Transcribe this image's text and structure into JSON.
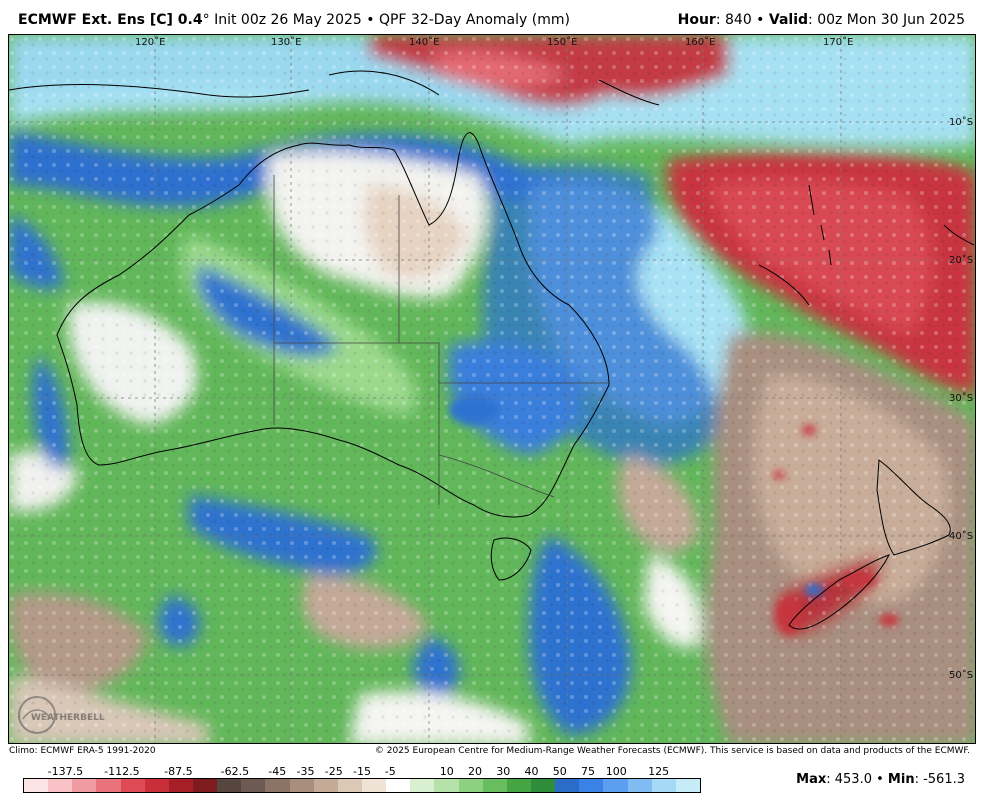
{
  "header": {
    "model": "ECMWF Ext. Ens [C] 0.4",
    "degree": "°",
    "run": " Init 00z 26 May 2025 • QPF 32-Day Anomaly (mm)",
    "hour_label": "Hour",
    "hour_value": ": 840 • ",
    "valid_label": "Valid",
    "valid_value": ": 00z Mon 30 Jun 2025"
  },
  "map": {
    "lon_labels": [
      "120˚E",
      "130˚E",
      "140˚E",
      "150˚E",
      "160˚E",
      "170˚E"
    ],
    "lat_labels": [
      "10˚S",
      "20˚S",
      "30˚S",
      "40˚S",
      "50˚S"
    ],
    "logo_text": "WEATHERBELL"
  },
  "footer": {
    "climo": "Climo: ECMWF ERA-5 1991-2020",
    "copyright": "© 2025 European Centre for Medium-Range Weather Forecasts (ECMWF). This service is based on data and products of the ECMWF."
  },
  "legend": {
    "ticks": [
      "-137.5",
      "-112.5",
      "-87.5",
      "-62.5",
      "-45",
      "-35",
      "-25",
      "-15",
      "-5",
      "10",
      "20",
      "30",
      "40",
      "50",
      "75",
      "100",
      "125"
    ],
    "colors": [
      "#fde4e6",
      "#f7c1c5",
      "#f09aa1",
      "#e8737c",
      "#de4b55",
      "#c92f38",
      "#a61f27",
      "#7e1b1f",
      "#574640",
      "#6d5a52",
      "#8b7365",
      "#a88e7d",
      "#c3ab98",
      "#dcc8b6",
      "#efe3d6",
      "#ffffff",
      "#d8f0cf",
      "#b4e2a8",
      "#8dd080",
      "#68bd5e",
      "#46a543",
      "#2e8c3a",
      "#2a6cc7",
      "#3b82e6",
      "#5c9eef",
      "#80bcf2",
      "#a6d9f5",
      "#c6ecf8"
    ]
  },
  "stats": {
    "max_label": "Max",
    "max_value": ": 453.0 • ",
    "min_label": "Min",
    "min_value": ": -561.3"
  }
}
